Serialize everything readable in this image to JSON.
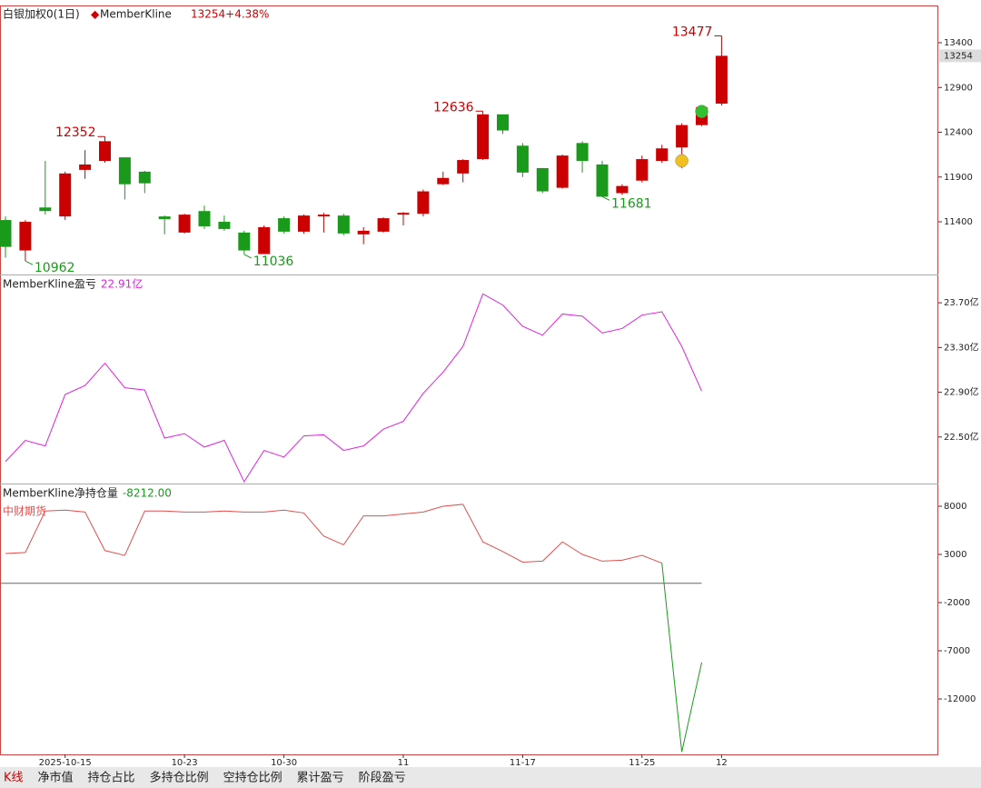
{
  "chart_data": [
    {
      "type": "candlestick",
      "title": "白银加权0(1日)",
      "legend": "MemberKline",
      "subtitle": "13254+4.38%",
      "categories": [
        null,
        null,
        null,
        "2025-10-15",
        null,
        null,
        null,
        null,
        null,
        "10-23",
        null,
        null,
        null,
        null,
        "10-30",
        null,
        null,
        null,
        null,
        null,
        "11",
        null,
        null,
        null,
        null,
        null,
        "11-17",
        null,
        null,
        null,
        null,
        null,
        "11-25",
        null,
        null,
        null,
        "12"
      ],
      "open": [
        11420,
        11080,
        11560,
        11460,
        11980,
        12080,
        12120,
        11960,
        11460,
        11280,
        11520,
        11400,
        11280,
        11040,
        11440,
        11290,
        11460,
        11470,
        11260,
        11290,
        11480,
        11490,
        11820,
        11940,
        12100,
        12600,
        12250,
        12000,
        11780,
        12280,
        12040,
        11720,
        11860,
        12080,
        12230,
        12480,
        12720
      ],
      "high": [
        11460,
        11420,
        12080,
        11960,
        12200,
        12352,
        12120,
        11970,
        11470,
        11490,
        11580,
        11470,
        11300,
        11360,
        11460,
        11480,
        11500,
        11490,
        11340,
        11450,
        11510,
        11760,
        11960,
        12100,
        12636,
        12600,
        12280,
        12000,
        12150,
        12300,
        12080,
        11820,
        12140,
        12260,
        12500,
        12700,
        13477
      ],
      "low": [
        11000,
        10962,
        11480,
        11420,
        11880,
        12060,
        11650,
        11720,
        11260,
        11270,
        11320,
        11300,
        11036,
        11040,
        11270,
        11270,
        11280,
        11250,
        11150,
        11280,
        11360,
        11460,
        11810,
        11840,
        12090,
        12380,
        11900,
        11720,
        11770,
        11950,
        11681,
        11700,
        11840,
        12060,
        12000,
        12470,
        12700
      ],
      "close": [
        11120,
        11400,
        11520,
        11940,
        12040,
        12300,
        11820,
        11830,
        11430,
        11480,
        11350,
        11320,
        11080,
        11340,
        11290,
        11470,
        11480,
        11270,
        11300,
        11440,
        11500,
        11740,
        11890,
        12090,
        12600,
        12420,
        11950,
        11740,
        12140,
        12080,
        11680,
        11800,
        12100,
        12220,
        12480,
        12680,
        13254
      ],
      "up_color": "#cc0000",
      "down_color": "#1a9a1a",
      "ylim": [
        10832,
        13806
      ],
      "yticks": [
        11400,
        11900,
        12400,
        12900,
        13400
      ],
      "annotations": [
        {
          "x": 36,
          "value": 13477
        },
        {
          "x": 24,
          "value": 12636
        },
        {
          "x": 5,
          "value": 12352
        },
        {
          "x": 1,
          "value": 10962
        },
        {
          "x": 12,
          "value": 11036
        },
        {
          "x": 30,
          "value": 11681
        }
      ],
      "last_price": 13254
    },
    {
      "type": "line",
      "title": "MemberKline盈亏",
      "subtitle": "22.91亿",
      "color": "#e020e0",
      "values": [
        22.28,
        22.47,
        22.42,
        22.88,
        22.96,
        23.16,
        22.94,
        22.92,
        22.49,
        22.53,
        22.41,
        22.47,
        22.1,
        22.38,
        22.32,
        22.51,
        22.52,
        22.38,
        22.42,
        22.57,
        22.64,
        22.89,
        23.08,
        23.31,
        23.78,
        23.68,
        23.49,
        23.41,
        23.6,
        23.58,
        23.43,
        23.47,
        23.59,
        23.62,
        23.31,
        22.91,
        null
      ],
      "ylim": [
        22.084,
        23.945
      ],
      "yticks": [
        {
          "value": 22.5,
          "label": "22.50亿"
        },
        {
          "value": 22.9,
          "label": "22.90亿"
        },
        {
          "value": 23.3,
          "label": "23.30亿"
        },
        {
          "value": 23.7,
          "label": "23.70亿"
        }
      ]
    },
    {
      "type": "line",
      "title": "MemberKline净持仓量",
      "subtitle": "-8212.00",
      "label": "中财期货",
      "color": "#e05050",
      "negative_color": "#1a9a1a",
      "values": [
        3100,
        3200,
        7500,
        7600,
        7400,
        3400,
        2900,
        7500,
        7500,
        7400,
        7400,
        7500,
        7400,
        7400,
        7600,
        7300,
        4900,
        4000,
        7000,
        7000,
        7200,
        7400,
        8000,
        8200,
        4300,
        3300,
        2200,
        2300,
        4300,
        3000,
        2300,
        2400,
        2900,
        2100,
        -17500,
        -8212,
        null
      ],
      "ylim": [
        -17752,
        10263
      ],
      "yticks": [
        -12000,
        -7000,
        -2000,
        3000,
        8000
      ],
      "zero_line": true
    }
  ],
  "tabs": [
    "K线",
    "净市值",
    "持仓占比",
    "多持仓比例",
    "空持仓比例",
    "累计盈亏",
    "阶段盈亏"
  ]
}
